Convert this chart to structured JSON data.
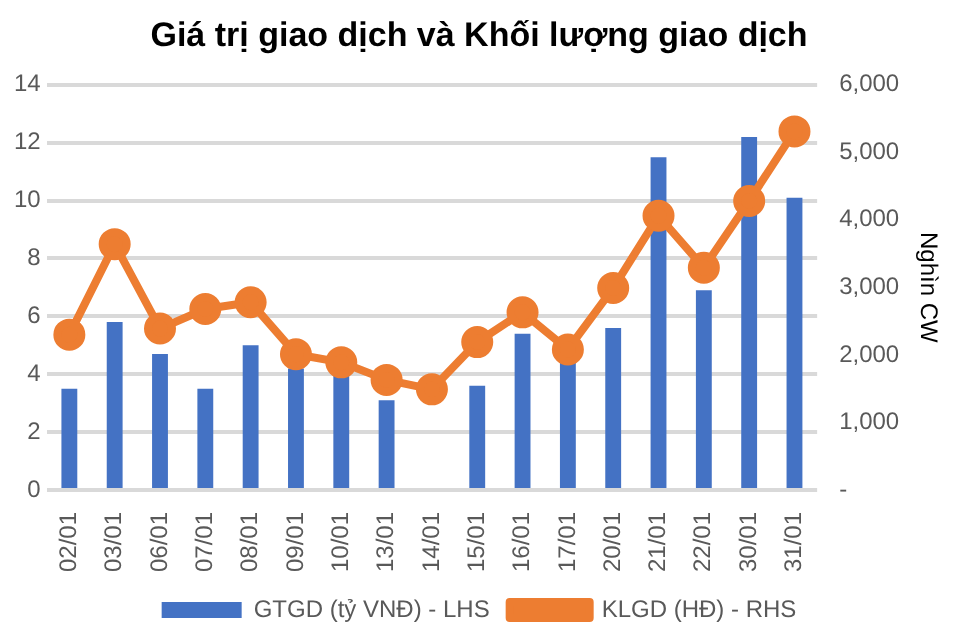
{
  "chart_data": {
    "type": "bar",
    "title": "Giá trị giao dịch và Khối lượng giao dịch",
    "categories": [
      "02/01",
      "03/01",
      "06/01",
      "07/01",
      "08/01",
      "09/01",
      "10/01",
      "13/01",
      "14/01",
      "15/01",
      "16/01",
      "17/01",
      "20/01",
      "21/01",
      "22/01",
      "30/01",
      "31/01"
    ],
    "series": [
      {
        "name": "GTGD (tỷ VNĐ) - LHS",
        "color": "#4472c4",
        "values": [
          3.5,
          5.8,
          4.7,
          3.5,
          5.0,
          4.2,
          4.1,
          3.1,
          null,
          3.6,
          5.4,
          4.5,
          5.6,
          11.5,
          6.9,
          12.2,
          10.1
        ]
      },
      {
        "name": "KLGD (HĐ) - RHS",
        "type": "line",
        "axis": "y2",
        "color": "#ed7d31",
        "values": [
          2300,
          3640,
          2390,
          2680,
          2780,
          2010,
          1890,
          1630,
          1490,
          2190,
          2630,
          2080,
          2990,
          4060,
          3290,
          4280,
          5310
        ]
      }
    ],
    "ylim": [
      0,
      14
    ],
    "yticks": [
      0,
      2,
      4,
      6,
      8,
      10,
      12,
      14
    ],
    "y2lim": [
      0,
      6000
    ],
    "y2ticks": [
      {
        "value": 0,
        "label": "-"
      },
      {
        "value": 1000,
        "label": "1,000"
      },
      {
        "value": 2000,
        "label": "2,000"
      },
      {
        "value": 3000,
        "label": "3,000"
      },
      {
        "value": 4000,
        "label": "4,000"
      },
      {
        "value": 5000,
        "label": "5,000"
      },
      {
        "value": 6000,
        "label": "6,000"
      }
    ],
    "y2label": "Nghìn CW",
    "grid": "y",
    "legend": "bottom",
    "marker": "circle",
    "line_style": "solid"
  }
}
